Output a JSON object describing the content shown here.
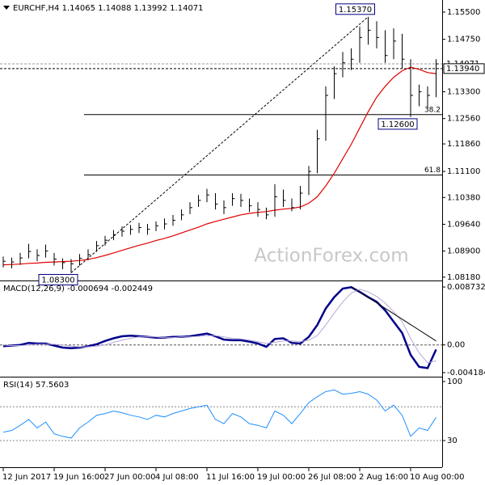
{
  "chart_data": [
    {
      "type": "ohlc",
      "title": "EURCHF,H4 1.14065 1.14088 1.13992 1.14071",
      "watermark": "ActionForex.com",
      "categories": [
        "12 Jun 2017",
        null,
        null,
        null,
        null,
        null,
        "19 Jun 16:00",
        null,
        null,
        null,
        null,
        null,
        "27 Jun 00:00",
        null,
        null,
        null,
        null,
        null,
        "4 Jul 08:00",
        null,
        null,
        null,
        null,
        null,
        "11 Jul 16:00",
        null,
        null,
        null,
        null,
        null,
        "19 Jul 00:00",
        null,
        null,
        null,
        null,
        null,
        "26 Jul 08:00",
        null,
        null,
        null,
        null,
        null,
        "2 Aug 16:00",
        null,
        null,
        null,
        null,
        null,
        "10 Aug 00:00",
        null,
        null,
        null
      ],
      "high": [
        1.0875,
        1.0872,
        1.0885,
        1.091,
        1.0895,
        1.0908,
        1.0885,
        1.087,
        1.0868,
        1.0882,
        1.0895,
        1.0918,
        1.0932,
        1.0948,
        1.0958,
        1.0962,
        1.0968,
        1.0965,
        1.0972,
        1.098,
        1.099,
        1.1005,
        1.1025,
        1.1045,
        1.1062,
        1.105,
        1.103,
        1.105,
        1.1048,
        1.1035,
        1.1025,
        1.101,
        1.1075,
        1.106,
        1.1035,
        1.107,
        1.1125,
        1.1225,
        1.1345,
        1.14,
        1.144,
        1.145,
        1.151,
        1.1537,
        1.1525,
        1.15,
        1.1505,
        1.149,
        1.142,
        1.135,
        1.1345,
        1.142
      ],
      "low": [
        1.0845,
        1.0842,
        1.0852,
        1.087,
        1.0862,
        1.0872,
        1.085,
        1.084,
        1.083,
        1.085,
        1.0865,
        1.0888,
        1.0905,
        1.092,
        1.093,
        1.0935,
        1.094,
        1.0935,
        1.0945,
        1.095,
        1.096,
        1.0975,
        1.0992,
        1.1012,
        1.1025,
        1.1005,
        1.0992,
        1.1015,
        1.1012,
        1.0998,
        1.0985,
        1.0978,
        1.0985,
        1.1012,
        1.1,
        1.1005,
        1.1045,
        1.1105,
        1.1195,
        1.131,
        1.137,
        1.139,
        1.141,
        1.146,
        1.145,
        1.141,
        1.142,
        1.1395,
        1.126,
        1.129,
        1.1285,
        1.1315
      ],
      "close": [
        1.0862,
        1.086,
        1.0871,
        1.0889,
        1.0878,
        1.089,
        1.0868,
        1.0858,
        1.0855,
        1.087,
        1.088,
        1.0905,
        1.092,
        1.0935,
        1.0945,
        1.095,
        1.0955,
        1.095,
        1.096,
        1.0965,
        1.0975,
        1.099,
        1.101,
        1.103,
        1.1045,
        1.102,
        1.101,
        1.1035,
        1.103,
        1.1015,
        1.1005,
        1.099,
        1.104,
        1.103,
        1.101,
        1.105,
        1.111,
        1.12,
        1.132,
        1.138,
        1.141,
        1.142,
        1.148,
        1.15,
        1.148,
        1.143,
        1.147,
        1.142,
        1.132,
        1.133,
        1.132,
        1.1407
      ],
      "color": "#000000",
      "ma": {
        "color": "#e00000",
        "values": [
          1.0852,
          1.0853,
          1.0854,
          1.0856,
          1.0857,
          1.0859,
          1.086,
          1.0861,
          1.0862,
          1.0864,
          1.0867,
          1.0872,
          1.0878,
          1.0885,
          1.0892,
          1.0899,
          1.0906,
          1.0912,
          1.0919,
          1.0925,
          1.0932,
          1.094,
          1.0948,
          1.0956,
          1.0965,
          1.0972,
          1.0978,
          1.0984,
          1.099,
          1.0994,
          1.0997,
          1.0999,
          1.1003,
          1.1006,
          1.1008,
          1.1012,
          1.1022,
          1.104,
          1.107,
          1.1105,
          1.1145,
          1.1185,
          1.123,
          1.1275,
          1.1315,
          1.1345,
          1.137,
          1.1388,
          1.1398,
          1.1392,
          1.1383,
          1.138
        ]
      },
      "ylim": [
        1.0811,
        1.1579
      ],
      "yticks": [
        {
          "value": 1.155,
          "label": "1.15500"
        },
        {
          "value": 1.1475,
          "label": "1.14750"
        },
        {
          "value": 1.133,
          "label": "1.13300"
        },
        {
          "value": 1.1256,
          "label": "1.12560"
        },
        {
          "value": 1.1186,
          "label": "1.11860"
        },
        {
          "value": 1.111,
          "label": "1.11100"
        },
        {
          "value": 1.1038,
          "label": "1.10380"
        },
        {
          "value": 1.0964,
          "label": "1.09640"
        },
        {
          "value": 1.089,
          "label": "1.08900"
        },
        {
          "value": 1.0818,
          "label": "1.08180"
        }
      ],
      "price_lines": [
        {
          "value": 1.14071,
          "label": "1.14071"
        },
        {
          "value": 1.1394,
          "label": "1.13940"
        }
      ],
      "annotations": [
        {
          "index": 43,
          "value": 1.1537,
          "label": "1.15370"
        },
        {
          "index": 48,
          "value": 1.126,
          "label": "1.12600"
        },
        {
          "index": 8,
          "value": 1.083,
          "label": "1.08300"
        }
      ],
      "fib_levels": [
        {
          "level": 38.2,
          "price": 1.1267
        },
        {
          "level": 61.8,
          "price": 1.11
        }
      ]
    },
    {
      "type": "line",
      "title": "MACD(12,26,9) -0.000694 -0.002449",
      "series": [
        {
          "color": "#00008b",
          "width": 2.5,
          "values": [
            -0.0002,
            -0.0001,
            0.0,
            0.0003,
            0.0002,
            0.0002,
            -0.0001,
            -0.0004,
            -0.0005,
            -0.0004,
            -0.0002,
            0.0001,
            0.0006,
            0.001,
            0.0013,
            0.0014,
            0.0013,
            0.0012,
            0.0011,
            0.0011,
            0.0012,
            0.0012,
            0.0013,
            0.0015,
            0.0017,
            0.0013,
            0.0008,
            0.0007,
            0.0007,
            0.0005,
            0.0002,
            -0.0003,
            0.0009,
            0.001,
            0.0003,
            0.0002,
            0.0012,
            0.003,
            0.0055,
            0.0072,
            0.0085,
            0.0087,
            0.008,
            0.0072,
            0.0065,
            0.0052,
            0.0035,
            0.0018,
            -0.0015,
            -0.0033,
            -0.0035,
            -0.0007
          ]
        },
        {
          "color": "#b8a8d8",
          "width": 1,
          "values": [
            0.0,
            -0.0001,
            -0.0001,
            0.0,
            0.0001,
            0.0001,
            0.0001,
            0.0,
            -0.0002,
            -0.0003,
            -0.0003,
            -0.0002,
            0.0,
            0.0004,
            0.0007,
            0.001,
            0.0012,
            0.0012,
            0.0012,
            0.0011,
            0.0011,
            0.0012,
            0.0012,
            0.0013,
            0.0014,
            0.0014,
            0.0012,
            0.001,
            0.0009,
            0.0007,
            0.0005,
            0.0002,
            0.0004,
            0.0006,
            0.0006,
            0.0005,
            0.0007,
            0.0014,
            0.003,
            0.0048,
            0.0065,
            0.0078,
            0.0084,
            0.008,
            0.0073,
            0.0063,
            0.005,
            0.0035,
            0.001,
            -0.0012,
            -0.0027,
            -0.0024
          ]
        }
      ],
      "ylim": [
        -0.00467,
        0.00947
      ],
      "yticks": [
        0.008732,
        {
          "value": 0,
          "label": "0.00"
        },
        -0.004184
      ],
      "trendline": [
        [
          41,
          0.0088
        ],
        [
          51,
          0.0006
        ]
      ]
    },
    {
      "type": "line",
      "title": "RSI(14) 57.5603",
      "series": [
        {
          "color": "#1e90ff",
          "width": 1,
          "values": [
            40,
            42,
            48,
            55,
            45,
            52,
            38,
            35,
            33,
            45,
            52,
            60,
            62,
            65,
            63,
            60,
            58,
            55,
            60,
            58,
            62,
            65,
            68,
            70,
            72,
            55,
            50,
            62,
            58,
            50,
            48,
            45,
            65,
            60,
            50,
            62,
            75,
            82,
            88,
            90,
            85,
            86,
            88,
            85,
            78,
            65,
            72,
            60,
            35,
            45,
            42,
            57.5603
          ]
        }
      ],
      "ylim": [
        -1.6,
        103.8
      ],
      "yticks": [
        100,
        30
      ],
      "levels": [
        70,
        30
      ]
    }
  ]
}
